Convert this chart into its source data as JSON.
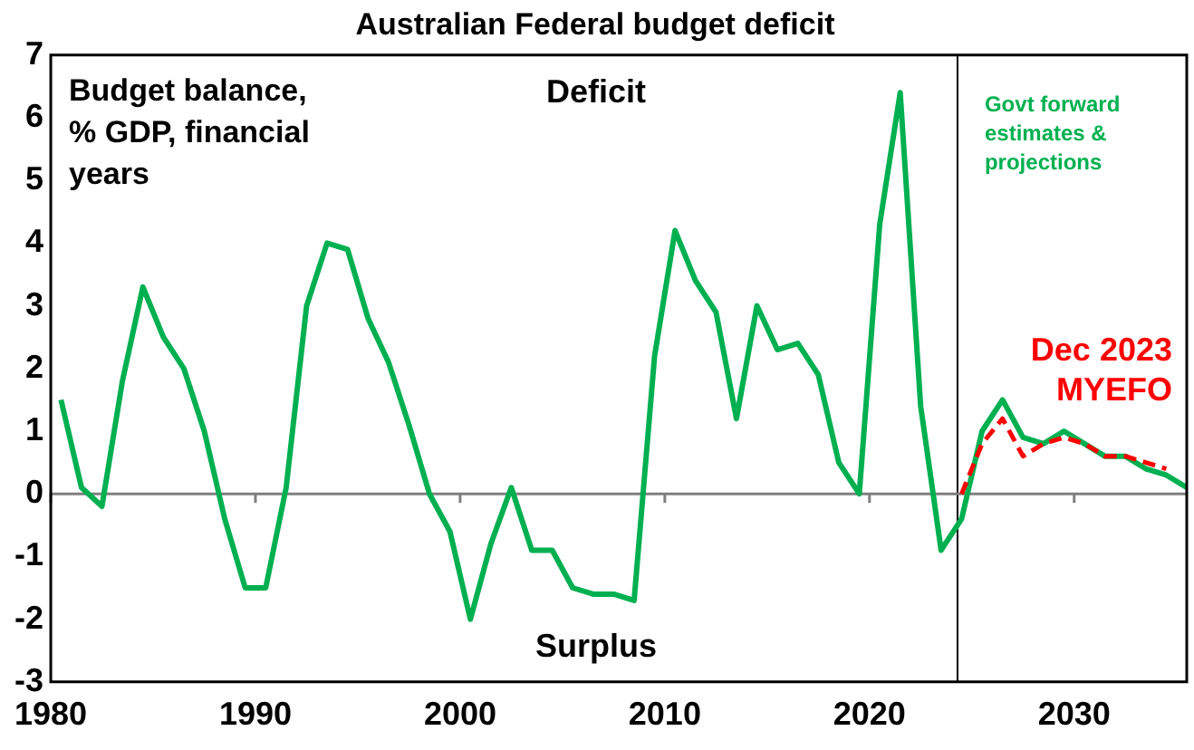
{
  "chart_data": {
    "type": "line",
    "title": "Australian Federal budget deficit",
    "ylabel": "Budget balance, % GDP, financial years",
    "annotations": [
      "Deficit",
      "Surplus"
    ],
    "xlim": [
      1980,
      2035.5
    ],
    "xticks": [
      1980,
      1990,
      2000,
      2010,
      2020,
      2030
    ],
    "ylim": [
      -3,
      7
    ],
    "yticks": [
      -3,
      -2,
      -1,
      0,
      1,
      2,
      3,
      4,
      5,
      6,
      7
    ],
    "grid": false,
    "legend": false,
    "marker": "none",
    "ref_lines": [
      {
        "axis": "x",
        "value": 2024.3,
        "label": "Govt forward estimates & projections"
      },
      {
        "axis": "y",
        "value": 0,
        "color": "#7f7f7f"
      }
    ],
    "series": [
      {
        "color": "#00b050",
        "line_style": "solid",
        "x": [
          1980.5,
          1981.5,
          1982.5,
          1983.5,
          1984.5,
          1985.5,
          1986.5,
          1987.5,
          1988.5,
          1989.5,
          1990.5,
          1991.5,
          1992.5,
          1993.5,
          1994.5,
          1995.5,
          1996.5,
          1997.5,
          1998.5,
          1999.5,
          2000.5,
          2001.5,
          2002.5,
          2003.5,
          2004.5,
          2005.5,
          2006.5,
          2007.5,
          2008.5,
          2009.5,
          2010.5,
          2011.5,
          2012.5,
          2013.5,
          2014.5,
          2015.5,
          2016.5,
          2017.5,
          2018.5,
          2019.5,
          2020.5,
          2021.5,
          2022.5,
          2023.5,
          2024.5,
          2025.5,
          2026.5,
          2027.5,
          2028.5,
          2029.5,
          2030.5,
          2031.5,
          2032.5,
          2033.5,
          2034.5,
          2035.5
        ],
        "values": [
          1.5,
          0.1,
          -0.2,
          1.8,
          3.3,
          2.5,
          2.0,
          1.0,
          -0.4,
          -1.5,
          -1.5,
          0.1,
          3.0,
          4.0,
          3.9,
          2.8,
          2.1,
          1.1,
          0.0,
          -0.6,
          -2.0,
          -0.8,
          0.1,
          -0.9,
          -0.9,
          -1.5,
          -1.6,
          -1.6,
          -1.7,
          2.2,
          4.2,
          3.4,
          2.9,
          1.2,
          3.0,
          2.3,
          2.4,
          1.9,
          0.5,
          0.0,
          4.3,
          6.4,
          1.4,
          -0.9,
          -0.4,
          1.0,
          1.5,
          0.9,
          0.8,
          1.0,
          0.8,
          0.6,
          0.6,
          0.4,
          0.3,
          0.1
        ]
      },
      {
        "name": "Dec 2023 MYEFO",
        "color": "#ff0000",
        "line_style": "dashed",
        "x": [
          2024.5,
          2025.5,
          2026.5,
          2027.5,
          2028.5,
          2029.5,
          2030.5,
          2031.5,
          2032.5,
          2033.5,
          2034.5
        ],
        "values": [
          0.0,
          0.8,
          1.2,
          0.6,
          0.8,
          0.9,
          0.8,
          0.6,
          0.6,
          0.5,
          0.4
        ]
      }
    ]
  }
}
